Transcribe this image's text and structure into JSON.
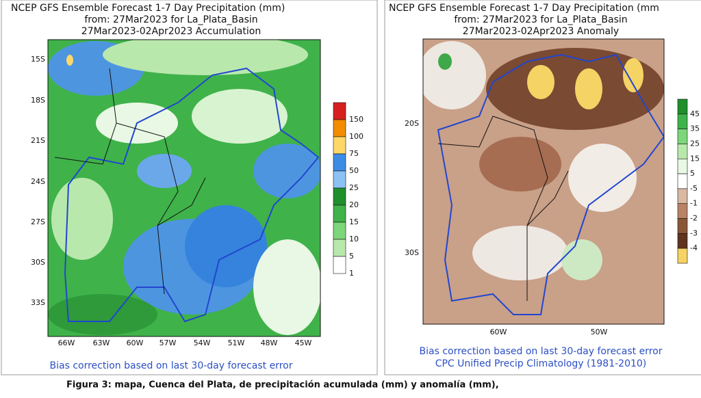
{
  "panels": [
    {
      "title_lines": [
        "NCEP GFS Ensemble Forecast 1-7 Day Precipitation (mm)",
        "from: 27Mar2023   for La_Plata_Basin",
        "27Mar2023-02Apr2023 Accumulation"
      ],
      "lat_labels": [
        "15S",
        "18S",
        "21S",
        "24S",
        "27S",
        "30S",
        "33S"
      ],
      "lon_labels": [
        "66W",
        "63W",
        "60W",
        "57W",
        "54W",
        "51W",
        "48W",
        "45W"
      ],
      "legend": [
        "150",
        "100",
        "75",
        "50",
        "25",
        "20",
        "15",
        "10",
        "5",
        "1"
      ],
      "footer": [
        "Bias correction based on last 30-day forecast error"
      ]
    },
    {
      "title_lines": [
        "NCEP GFS Ensemble Forecast 1-7 Day Precipitation (mm",
        "from: 27Mar2023   for La_Plata_Basin",
        "27Mar2023-02Apr2023 Anomaly"
      ],
      "lat_labels": [
        "20S",
        "30S"
      ],
      "lon_labels": [
        "60W",
        "50W"
      ],
      "legend": [
        "45",
        "35",
        "25",
        "15",
        "5",
        "-5",
        "-1",
        "-2",
        "-3",
        "-4"
      ],
      "footer": [
        "Bias correction based on last 30-day forecast error",
        "CPC Unified Precip Climatology (1981-2010)"
      ]
    }
  ],
  "caption": "Figura 3: mapa, Cuenca del Plata, de precipitación acumulada (mm) y anomalía (mm),"
}
